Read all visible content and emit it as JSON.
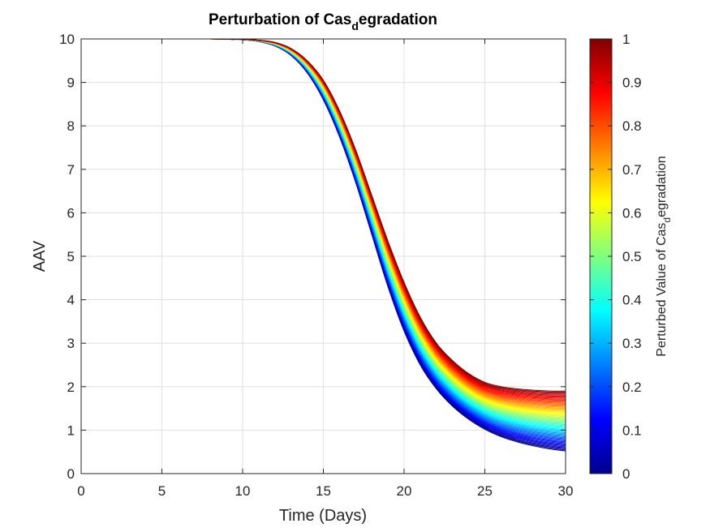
{
  "chart_data": {
    "type": "line",
    "title": "Perturbation of Cas",
    "title_subscript": "d",
    "title_suffix": "egradation",
    "xlabel": "Time (Days)",
    "ylabel": "AAV",
    "xlim": [
      0,
      30
    ],
    "ylim": [
      0,
      10
    ],
    "x_ticks": [
      "0",
      "5",
      "10",
      "15",
      "20",
      "25",
      "30"
    ],
    "y_ticks": [
      "0",
      "1",
      "2",
      "3",
      "4",
      "5",
      "6",
      "7",
      "8",
      "9",
      "10"
    ],
    "grid": true,
    "colormap": "jet",
    "colorbar": {
      "label": "Perturbed Value of Cas",
      "label_subscript": "d",
      "label_suffix": "egradation",
      "range": [
        0,
        1
      ],
      "ticks": [
        "0",
        "0.1",
        "0.2",
        "0.3",
        "0.4",
        "0.5",
        "0.6",
        "0.7",
        "0.8",
        "0.9",
        "1"
      ]
    },
    "series_family": {
      "parameter_min": 0,
      "parameter_max": 1,
      "curve_count": 60,
      "x": [
        0,
        2,
        4,
        6,
        8,
        10,
        11,
        12,
        13,
        14,
        15,
        16,
        17,
        18,
        19,
        20,
        21,
        22,
        23,
        24,
        25,
        26,
        27,
        28,
        29,
        30
      ],
      "lowest_parameter_values": [
        10,
        10,
        10,
        10,
        10,
        9.98,
        9.94,
        9.84,
        9.62,
        9.22,
        8.6,
        7.75,
        6.7,
        5.5,
        4.3,
        3.28,
        2.5,
        1.95,
        1.55,
        1.25,
        1.02,
        0.85,
        0.73,
        0.64,
        0.57,
        0.52
      ],
      "highest_parameter_values": [
        10,
        10,
        10,
        10,
        10,
        9.99,
        9.97,
        9.92,
        9.78,
        9.5,
        9.05,
        8.35,
        7.45,
        6.4,
        5.35,
        4.4,
        3.6,
        3.0,
        2.6,
        2.3,
        2.1,
        2.0,
        1.95,
        1.92,
        1.9,
        1.9
      ]
    }
  },
  "colors": {
    "axis": "#262626",
    "grid": "#dfdfdf",
    "title": "#000000"
  }
}
